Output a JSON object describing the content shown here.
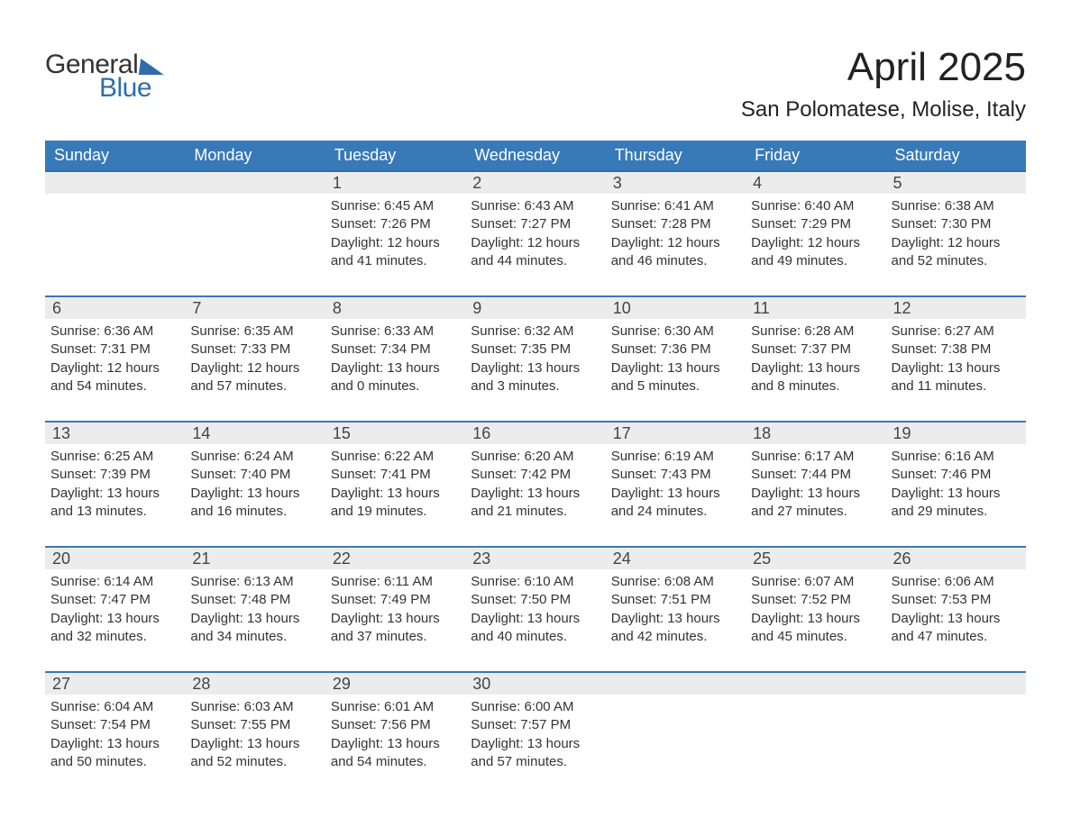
{
  "logo": {
    "text1": "General",
    "text2": "Blue"
  },
  "title": "April 2025",
  "location": "San Polomatese, Molise, Italy",
  "columns": [
    "Sunday",
    "Monday",
    "Tuesday",
    "Wednesday",
    "Thursday",
    "Friday",
    "Saturday"
  ],
  "colors": {
    "header_bg": "#3879b8",
    "header_text": "#ffffff",
    "accent": "#2f6eab",
    "daynum_bg": "#ececec",
    "body_text": "#333333",
    "page_bg": "#ffffff"
  },
  "fonts": {
    "family": "Arial",
    "month_title_size": 44,
    "location_size": 24,
    "header_size": 18,
    "daynum_size": 18,
    "body_size": 15
  },
  "weeks": [
    [
      null,
      null,
      {
        "n": "1",
        "sunrise": "6:45 AM",
        "sunset": "7:26 PM",
        "dl1": "12 hours",
        "dl2": "and 41 minutes."
      },
      {
        "n": "2",
        "sunrise": "6:43 AM",
        "sunset": "7:27 PM",
        "dl1": "12 hours",
        "dl2": "and 44 minutes."
      },
      {
        "n": "3",
        "sunrise": "6:41 AM",
        "sunset": "7:28 PM",
        "dl1": "12 hours",
        "dl2": "and 46 minutes."
      },
      {
        "n": "4",
        "sunrise": "6:40 AM",
        "sunset": "7:29 PM",
        "dl1": "12 hours",
        "dl2": "and 49 minutes."
      },
      {
        "n": "5",
        "sunrise": "6:38 AM",
        "sunset": "7:30 PM",
        "dl1": "12 hours",
        "dl2": "and 52 minutes."
      }
    ],
    [
      {
        "n": "6",
        "sunrise": "6:36 AM",
        "sunset": "7:31 PM",
        "dl1": "12 hours",
        "dl2": "and 54 minutes."
      },
      {
        "n": "7",
        "sunrise": "6:35 AM",
        "sunset": "7:33 PM",
        "dl1": "12 hours",
        "dl2": "and 57 minutes."
      },
      {
        "n": "8",
        "sunrise": "6:33 AM",
        "sunset": "7:34 PM",
        "dl1": "13 hours",
        "dl2": "and 0 minutes."
      },
      {
        "n": "9",
        "sunrise": "6:32 AM",
        "sunset": "7:35 PM",
        "dl1": "13 hours",
        "dl2": "and 3 minutes."
      },
      {
        "n": "10",
        "sunrise": "6:30 AM",
        "sunset": "7:36 PM",
        "dl1": "13 hours",
        "dl2": "and 5 minutes."
      },
      {
        "n": "11",
        "sunrise": "6:28 AM",
        "sunset": "7:37 PM",
        "dl1": "13 hours",
        "dl2": "and 8 minutes."
      },
      {
        "n": "12",
        "sunrise": "6:27 AM",
        "sunset": "7:38 PM",
        "dl1": "13 hours",
        "dl2": "and 11 minutes."
      }
    ],
    [
      {
        "n": "13",
        "sunrise": "6:25 AM",
        "sunset": "7:39 PM",
        "dl1": "13 hours",
        "dl2": "and 13 minutes."
      },
      {
        "n": "14",
        "sunrise": "6:24 AM",
        "sunset": "7:40 PM",
        "dl1": "13 hours",
        "dl2": "and 16 minutes."
      },
      {
        "n": "15",
        "sunrise": "6:22 AM",
        "sunset": "7:41 PM",
        "dl1": "13 hours",
        "dl2": "and 19 minutes."
      },
      {
        "n": "16",
        "sunrise": "6:20 AM",
        "sunset": "7:42 PM",
        "dl1": "13 hours",
        "dl2": "and 21 minutes."
      },
      {
        "n": "17",
        "sunrise": "6:19 AM",
        "sunset": "7:43 PM",
        "dl1": "13 hours",
        "dl2": "and 24 minutes."
      },
      {
        "n": "18",
        "sunrise": "6:17 AM",
        "sunset": "7:44 PM",
        "dl1": "13 hours",
        "dl2": "and 27 minutes."
      },
      {
        "n": "19",
        "sunrise": "6:16 AM",
        "sunset": "7:46 PM",
        "dl1": "13 hours",
        "dl2": "and 29 minutes."
      }
    ],
    [
      {
        "n": "20",
        "sunrise": "6:14 AM",
        "sunset": "7:47 PM",
        "dl1": "13 hours",
        "dl2": "and 32 minutes."
      },
      {
        "n": "21",
        "sunrise": "6:13 AM",
        "sunset": "7:48 PM",
        "dl1": "13 hours",
        "dl2": "and 34 minutes."
      },
      {
        "n": "22",
        "sunrise": "6:11 AM",
        "sunset": "7:49 PM",
        "dl1": "13 hours",
        "dl2": "and 37 minutes."
      },
      {
        "n": "23",
        "sunrise": "6:10 AM",
        "sunset": "7:50 PM",
        "dl1": "13 hours",
        "dl2": "and 40 minutes."
      },
      {
        "n": "24",
        "sunrise": "6:08 AM",
        "sunset": "7:51 PM",
        "dl1": "13 hours",
        "dl2": "and 42 minutes."
      },
      {
        "n": "25",
        "sunrise": "6:07 AM",
        "sunset": "7:52 PM",
        "dl1": "13 hours",
        "dl2": "and 45 minutes."
      },
      {
        "n": "26",
        "sunrise": "6:06 AM",
        "sunset": "7:53 PM",
        "dl1": "13 hours",
        "dl2": "and 47 minutes."
      }
    ],
    [
      {
        "n": "27",
        "sunrise": "6:04 AM",
        "sunset": "7:54 PM",
        "dl1": "13 hours",
        "dl2": "and 50 minutes."
      },
      {
        "n": "28",
        "sunrise": "6:03 AM",
        "sunset": "7:55 PM",
        "dl1": "13 hours",
        "dl2": "and 52 minutes."
      },
      {
        "n": "29",
        "sunrise": "6:01 AM",
        "sunset": "7:56 PM",
        "dl1": "13 hours",
        "dl2": "and 54 minutes."
      },
      {
        "n": "30",
        "sunrise": "6:00 AM",
        "sunset": "7:57 PM",
        "dl1": "13 hours",
        "dl2": "and 57 minutes."
      },
      null,
      null,
      null
    ]
  ],
  "labels": {
    "sunrise": "Sunrise: ",
    "sunset": "Sunset: ",
    "daylight": "Daylight: "
  }
}
